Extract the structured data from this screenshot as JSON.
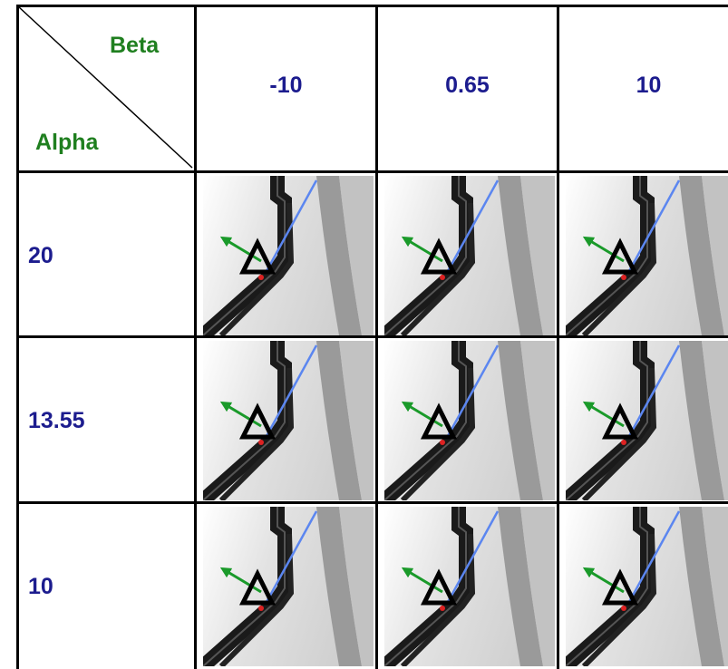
{
  "table": {
    "corner": {
      "column_label": "Beta",
      "row_label": "Alpha"
    },
    "columns": [
      "-10",
      "0.65",
      "10"
    ],
    "rows": [
      {
        "label": "20"
      },
      {
        "label": "13.55"
      },
      {
        "label": "10"
      }
    ]
  }
}
